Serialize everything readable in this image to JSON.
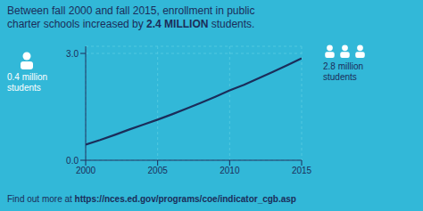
{
  "chart_data": {
    "type": "line",
    "title": "Between fall 2000 and fall 2015, enrollment in public",
    "subtitle": [
      "charter schools increased by ",
      "2.4 MILLION",
      " students."
    ],
    "annotations": [
      [
        "0.4 million",
        "students"
      ],
      [
        "2.8 million",
        "students"
      ],
      [
        "Find out more at ",
        "https://nces.ed.gov/programs/coe/indicator_cgb.asp"
      ]
    ],
    "x": [
      2000,
      2001,
      2002,
      2003,
      2004,
      2005,
      2006,
      2007,
      2008,
      2009,
      2010,
      2011,
      2012,
      2013,
      2014,
      2015
    ],
    "values": [
      0.44,
      0.57,
      0.71,
      0.86,
      1.0,
      1.14,
      1.29,
      1.45,
      1.61,
      1.78,
      1.96,
      2.12,
      2.3,
      2.48,
      2.67,
      2.86
    ],
    "color": "#1b2d5a",
    "xlim": [
      2000,
      2015
    ],
    "xticks": [
      2000,
      2005,
      2010,
      2015
    ],
    "ylim": [
      0.0,
      3.2
    ],
    "yticks": [
      {
        "value": 0.0,
        "label": "0.0"
      },
      {
        "value": 3.0,
        "label": "3.0"
      }
    ],
    "grid": true
  }
}
